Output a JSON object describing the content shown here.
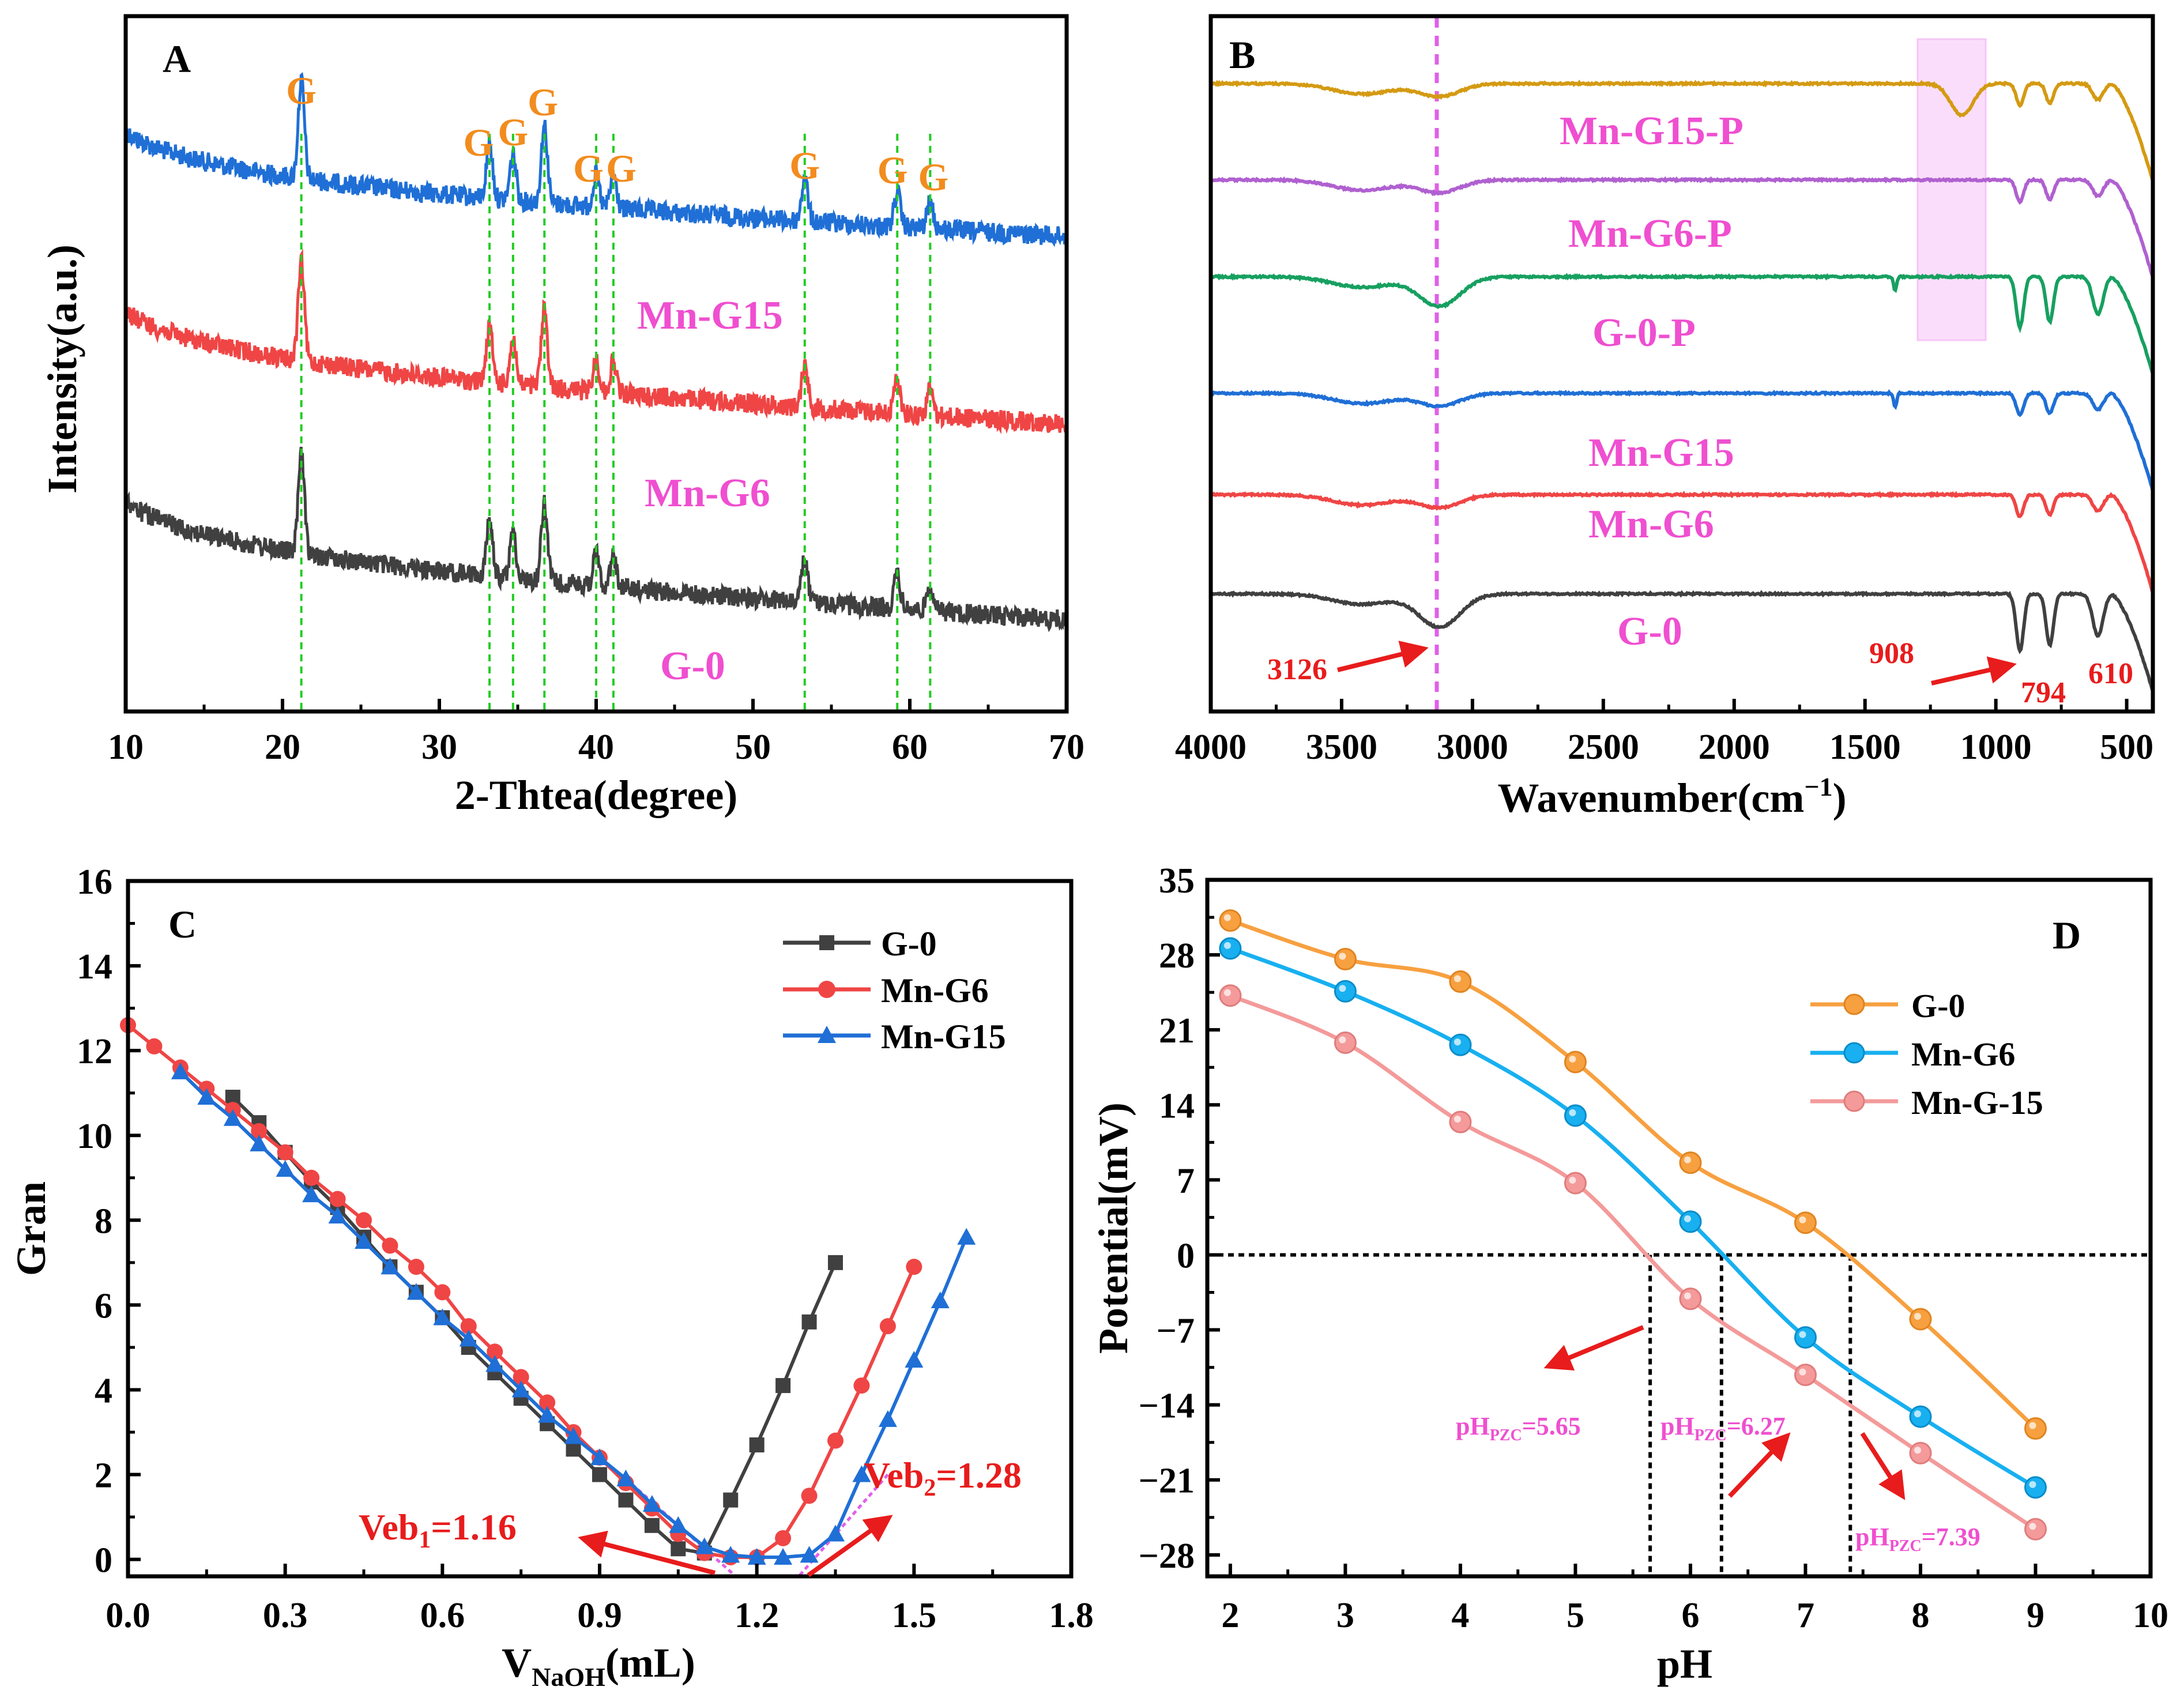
{
  "colors": {
    "black": "#000000",
    "gray": "#404040",
    "red": "#f04545",
    "blue": "#1f6fd6",
    "orange_label": "#f28c1e",
    "pink_label": "#ef4fd0",
    "annot_red": "#e81c1c",
    "green_dash": "#22cc22",
    "ftir_gold": "#d49a12",
    "ftir_purple": "#b060d0",
    "ftir_green": "#17a060",
    "ftir_blue": "#1f6fd6",
    "ftir_red": "#f04545",
    "ftir_gray": "#404040",
    "highlight": "#f7c8f7",
    "d_orange": "#f7a040",
    "d_cyan": "#18b0f0",
    "d_pink": "#f49a9a"
  },
  "panels": {
    "A": {
      "letter": "A",
      "xlabel": "2-Thtea(degree)",
      "ylabel": "Intensity(a.u.)",
      "xticks": [
        "10",
        "20",
        "30",
        "40",
        "50",
        "60",
        "70"
      ],
      "peak_label": "G",
      "peak_positions": [
        21.2,
        33.2,
        34.7,
        36.7,
        40.0,
        41.1,
        53.3,
        59.2,
        61.3
      ],
      "trace_labels": [
        "Mn-G15",
        "Mn-G6",
        "G-0"
      ]
    },
    "B": {
      "letter": "B",
      "xlabel": "Wavenumber(cm",
      "xlabel_sup": "−1",
      "xlabel_close": ")",
      "xticks": [
        "4000",
        "3500",
        "3000",
        "2500",
        "2000",
        "1500",
        "1000",
        "500"
      ],
      "trace_labels": [
        "Mn-G15-P",
        "Mn-G6-P",
        "G-0-P",
        "Mn-G15",
        "Mn-G6",
        "G-0"
      ],
      "annotations": {
        "a3126": "3126",
        "a908": "908",
        "a794": "794",
        "a610": "610"
      }
    },
    "C": {
      "letter": "C",
      "ylabel": "Gran",
      "xlabel_main": "V",
      "xlabel_sub": "NaOH",
      "xlabel_unit": "(mL)",
      "xticks": [
        "0.0",
        "0.3",
        "0.6",
        "0.9",
        "1.2",
        "1.5",
        "1.8"
      ],
      "yticks": [
        "0",
        "2",
        "4",
        "6",
        "8",
        "10",
        "12",
        "14",
        "16"
      ],
      "legend": [
        "G-0",
        "Mn-G6",
        "Mn-G15"
      ],
      "veb1_main": "Veb",
      "veb1_sub": "1",
      "veb1_val": "=1.16",
      "veb2_main": "Veb",
      "veb2_sub": "2",
      "veb2_val": "=1.28"
    },
    "D": {
      "letter": "D",
      "ylabel": "Potential(mV)",
      "xlabel": "pH",
      "xticks": [
        "2",
        "3",
        "4",
        "5",
        "6",
        "7",
        "8",
        "9",
        "10"
      ],
      "yticks": [
        "35",
        "28",
        "21",
        "14",
        "7",
        "0",
        "−7",
        "−14",
        "−21",
        "−28"
      ],
      "legend": [
        "G-0",
        "Mn-G6",
        "Mn-G-15"
      ],
      "pzc_main": "pH",
      "pzc_sub": "PZC",
      "pzc_values": [
        "=5.65",
        "=6.27",
        "=7.39"
      ]
    }
  },
  "chart_data": [
    {
      "panel": "A",
      "type": "line",
      "title": "",
      "xlabel": "2-Thtea(degree)",
      "ylabel": "Intensity(a.u.)",
      "xlim": [
        10,
        70
      ],
      "series": [
        {
          "name": "Mn-G15",
          "color": "#1f6fd6",
          "peaks_2theta": [
            21.2,
            33.2,
            34.7,
            36.7,
            40.0,
            41.1,
            53.3,
            59.2,
            61.3
          ]
        },
        {
          "name": "Mn-G6",
          "color": "#f04545",
          "peaks_2theta": [
            21.2,
            33.2,
            34.7,
            36.7,
            40.0,
            41.1,
            53.3,
            59.2,
            61.3
          ]
        },
        {
          "name": "G-0",
          "color": "#404040",
          "peaks_2theta": [
            21.2,
            33.2,
            34.7,
            36.7,
            40.0,
            41.1,
            53.3,
            59.2,
            61.3
          ]
        }
      ]
    },
    {
      "panel": "B",
      "type": "line",
      "title": "",
      "xlabel": "Wavenumber(cm−1)",
      "xlim": [
        4000,
        400
      ],
      "marked_wavenumbers": [
        3126,
        908,
        794,
        610
      ],
      "series": [
        {
          "name": "Mn-G15-P",
          "color": "#d49a12"
        },
        {
          "name": "Mn-G6-P",
          "color": "#b060d0"
        },
        {
          "name": "G-0-P",
          "color": "#17a060"
        },
        {
          "name": "Mn-G15",
          "color": "#1f6fd6"
        },
        {
          "name": "Mn-G6",
          "color": "#f04545"
        },
        {
          "name": "G-0",
          "color": "#404040"
        }
      ]
    },
    {
      "panel": "C",
      "type": "line",
      "xlabel": "VNaOH(mL)",
      "ylabel": "Gran",
      "xlim": [
        0,
        1.8
      ],
      "ylim": [
        -0.4,
        16
      ],
      "endpoints": {
        "Veb1": 1.16,
        "Veb2": 1.28
      },
      "series": [
        {
          "name": "G-0",
          "color": "#404040",
          "marker": "square",
          "x": [
            0.2,
            0.25,
            0.3,
            0.35,
            0.4,
            0.45,
            0.5,
            0.55,
            0.6,
            0.65,
            0.7,
            0.75,
            0.8,
            0.85,
            0.9,
            0.95,
            1.0,
            1.05,
            1.1,
            1.15,
            1.2,
            1.25,
            1.3,
            1.35
          ],
          "y": [
            10.9,
            10.3,
            9.6,
            8.9,
            8.3,
            7.6,
            6.9,
            6.3,
            5.7,
            5.0,
            4.4,
            3.8,
            3.2,
            2.6,
            2.0,
            1.4,
            0.8,
            0.25,
            0.15,
            1.4,
            2.7,
            4.1,
            5.6,
            7.0
          ]
        },
        {
          "name": "Mn-G6",
          "color": "#f04545",
          "marker": "circle",
          "x": [
            0.0,
            0.05,
            0.1,
            0.15,
            0.2,
            0.25,
            0.3,
            0.35,
            0.4,
            0.45,
            0.5,
            0.55,
            0.6,
            0.65,
            0.7,
            0.75,
            0.8,
            0.85,
            0.9,
            0.95,
            1.0,
            1.05,
            1.1,
            1.15,
            1.2,
            1.25,
            1.3,
            1.35,
            1.4,
            1.45,
            1.5
          ],
          "y": [
            12.6,
            12.1,
            11.6,
            11.1,
            10.6,
            10.1,
            9.6,
            9.0,
            8.5,
            8.0,
            7.4,
            6.9,
            6.3,
            5.5,
            4.9,
            4.3,
            3.7,
            3.0,
            2.4,
            1.8,
            1.2,
            0.6,
            0.15,
            0.05,
            0.05,
            0.5,
            1.5,
            2.8,
            4.1,
            5.5,
            6.9
          ]
        },
        {
          "name": "Mn-G15",
          "color": "#1f6fd6",
          "marker": "triangle",
          "x": [
            0.1,
            0.15,
            0.2,
            0.25,
            0.3,
            0.35,
            0.4,
            0.45,
            0.5,
            0.55,
            0.6,
            0.65,
            0.7,
            0.75,
            0.8,
            0.85,
            0.9,
            0.95,
            1.0,
            1.05,
            1.1,
            1.15,
            1.2,
            1.25,
            1.3,
            1.35,
            1.4,
            1.45,
            1.5,
            1.55,
            1.6
          ],
          "y": [
            11.5,
            10.9,
            10.4,
            9.8,
            9.2,
            8.6,
            8.1,
            7.5,
            6.9,
            6.3,
            5.7,
            5.2,
            4.6,
            4.0,
            3.4,
            2.9,
            2.4,
            1.9,
            1.3,
            0.8,
            0.3,
            0.1,
            0.05,
            0.05,
            0.1,
            0.6,
            2.0,
            3.3,
            4.7,
            6.1,
            7.6
          ]
        }
      ]
    },
    {
      "panel": "D",
      "type": "line",
      "xlabel": "pH",
      "ylabel": "Potential(mV)",
      "xlim": [
        1.8,
        10
      ],
      "ylim": [
        -30,
        35
      ],
      "pH_pzc": [
        5.65,
        6.27,
        7.39
      ],
      "x": [
        2,
        3,
        4,
        5,
        6,
        7,
        8,
        9
      ],
      "series": [
        {
          "name": "G-0",
          "color": "#f7a040",
          "values": [
            31.2,
            27.6,
            25.5,
            18.0,
            8.6,
            3.0,
            -6.0,
            -16.2
          ]
        },
        {
          "name": "Mn-G6",
          "color": "#18b0f0",
          "values": [
            28.6,
            24.6,
            19.6,
            13.0,
            3.1,
            -7.7,
            -15.1,
            -21.7
          ]
        },
        {
          "name": "Mn-G-15",
          "color": "#f49a9a",
          "values": [
            24.2,
            19.8,
            12.4,
            6.7,
            -4.1,
            -11.2,
            -18.5,
            -25.6
          ]
        }
      ]
    }
  ]
}
